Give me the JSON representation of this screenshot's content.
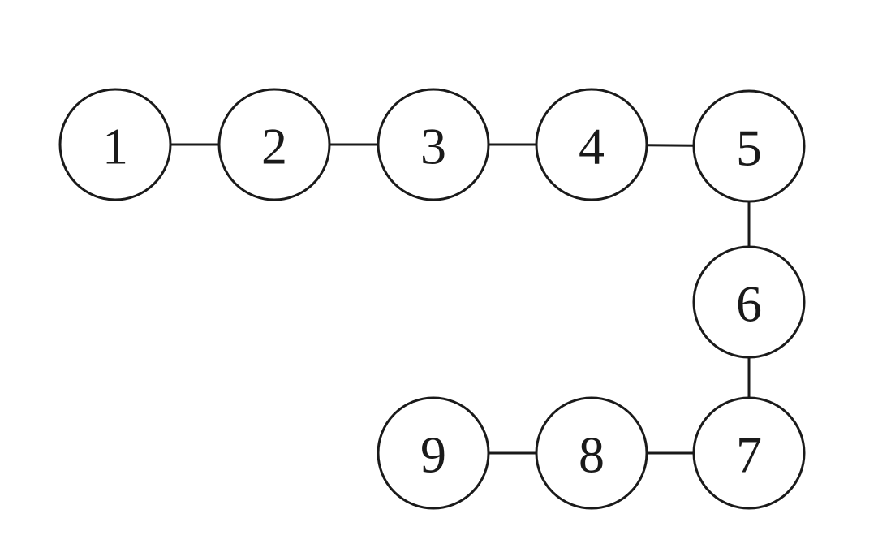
{
  "diagram": {
    "type": "graph",
    "nodes": [
      {
        "id": "1",
        "label": "1"
      },
      {
        "id": "2",
        "label": "2"
      },
      {
        "id": "3",
        "label": "3"
      },
      {
        "id": "4",
        "label": "4"
      },
      {
        "id": "5",
        "label": "5"
      },
      {
        "id": "6",
        "label": "6"
      },
      {
        "id": "7",
        "label": "7"
      },
      {
        "id": "8",
        "label": "8"
      },
      {
        "id": "9",
        "label": "9"
      }
    ],
    "edges": [
      {
        "from": "1",
        "to": "2"
      },
      {
        "from": "2",
        "to": "3"
      },
      {
        "from": "3",
        "to": "4"
      },
      {
        "from": "4",
        "to": "5"
      },
      {
        "from": "5",
        "to": "6"
      },
      {
        "from": "6",
        "to": "7"
      },
      {
        "from": "7",
        "to": "8"
      },
      {
        "from": "8",
        "to": "9"
      }
    ]
  }
}
